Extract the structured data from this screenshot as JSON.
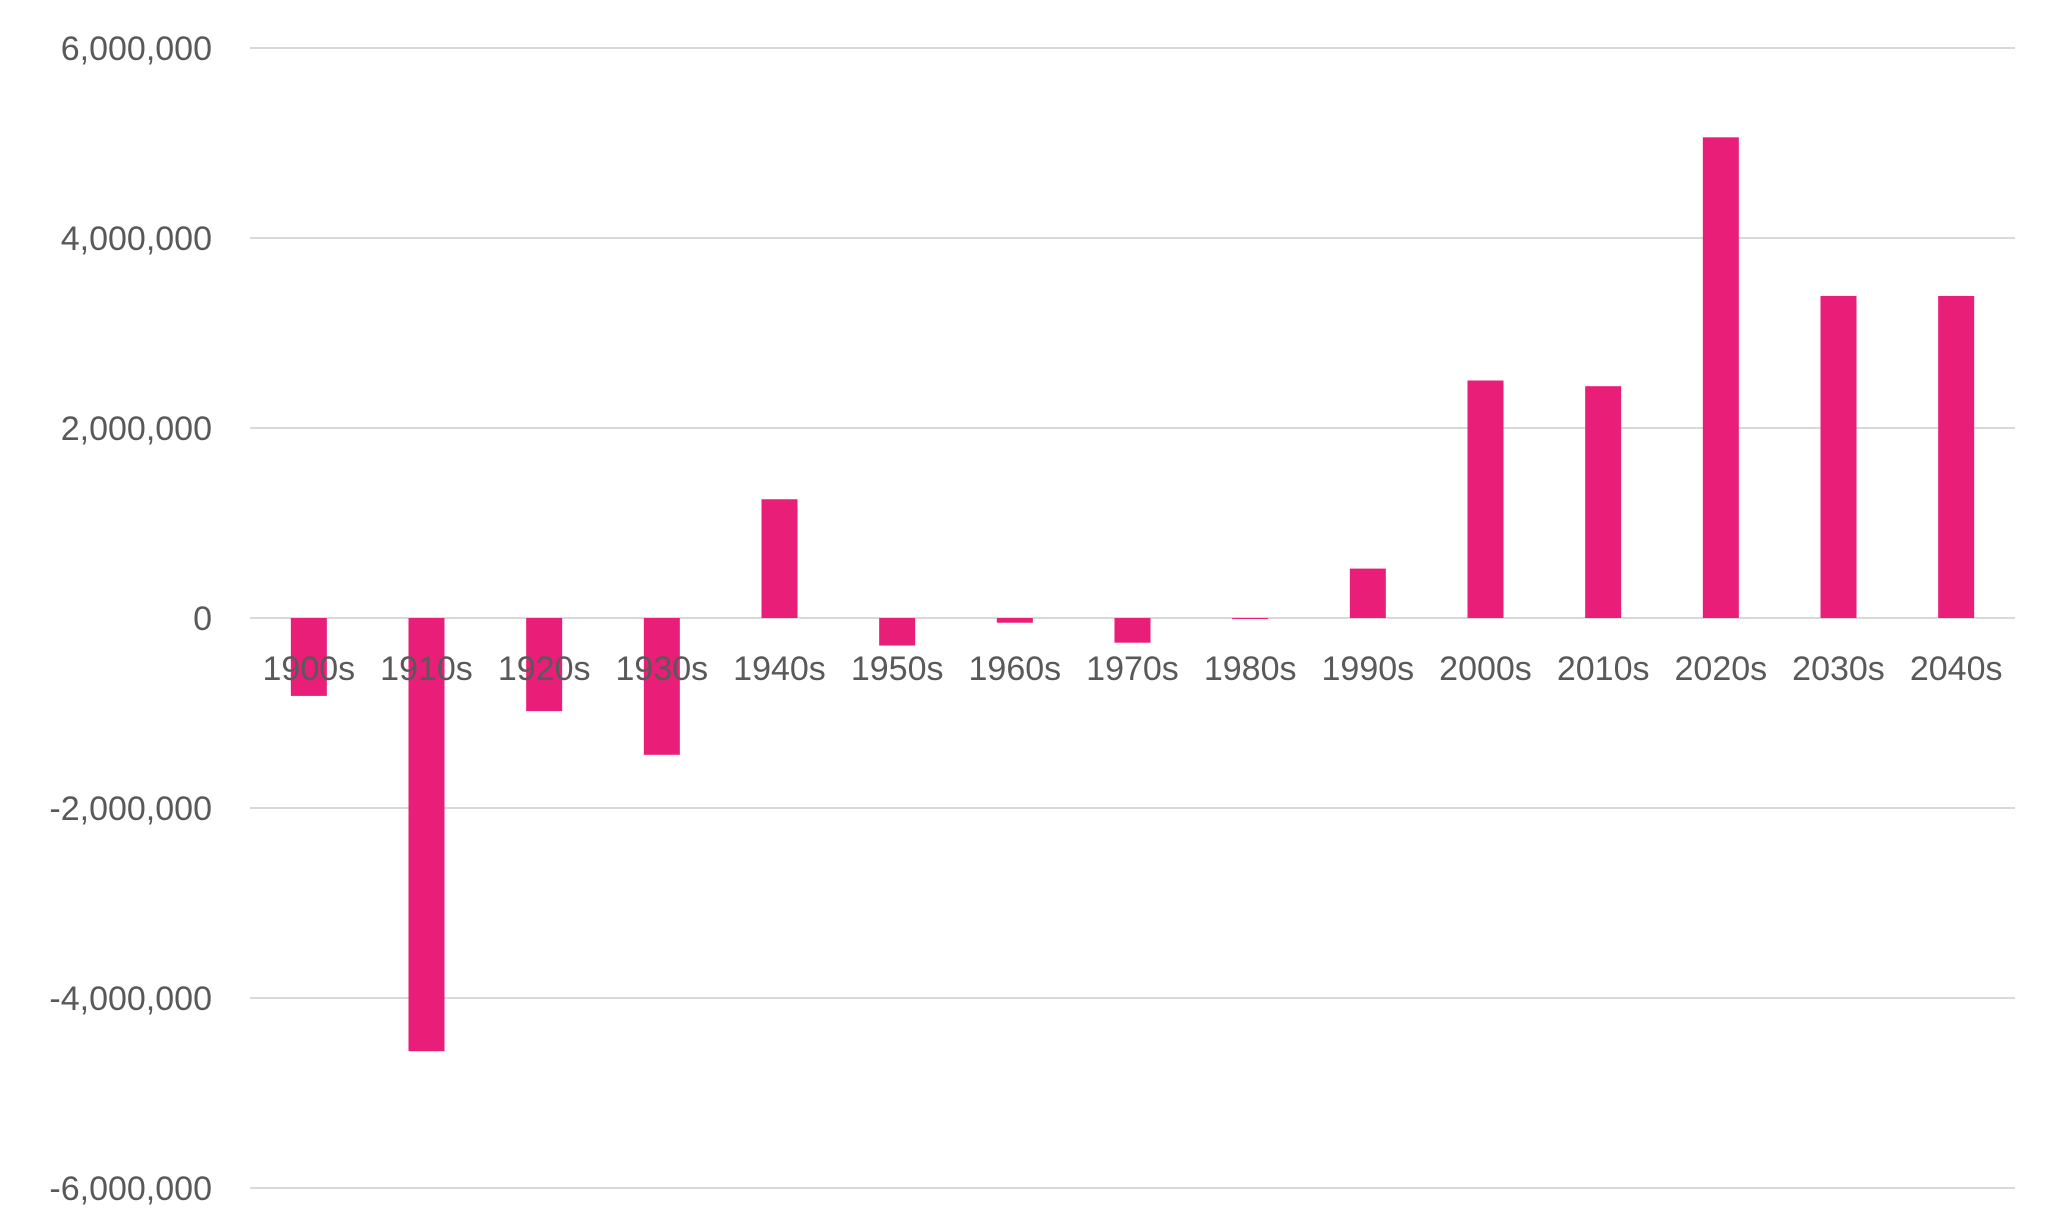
{
  "chart_data": {
    "type": "bar",
    "title": "",
    "xlabel": "",
    "ylabel": "",
    "ylim": [
      -6000000,
      6000000
    ],
    "yticks": [
      6000000,
      4000000,
      2000000,
      0,
      -2000000,
      -4000000,
      -6000000
    ],
    "ytick_labels": [
      "6,000,000",
      "4,000,000",
      "2,000,000",
      "0",
      "-2,000,000",
      "-4,000,000",
      "-6,000,000"
    ],
    "grid": true,
    "legend": "none",
    "bar_color": "#e91e78",
    "categories": [
      "1900s",
      "1910s",
      "1920s",
      "1930s",
      "1940s",
      "1950s",
      "1960s",
      "1970s",
      "1980s",
      "1990s",
      "2000s",
      "2010s",
      "2020s",
      "2030s",
      "2040s"
    ],
    "values": [
      -820000,
      -4560000,
      -980000,
      -1440000,
      1250000,
      -290000,
      -50000,
      -260000,
      -10000,
      520000,
      2500000,
      2440000,
      5060000,
      3390000,
      3390000
    ]
  }
}
